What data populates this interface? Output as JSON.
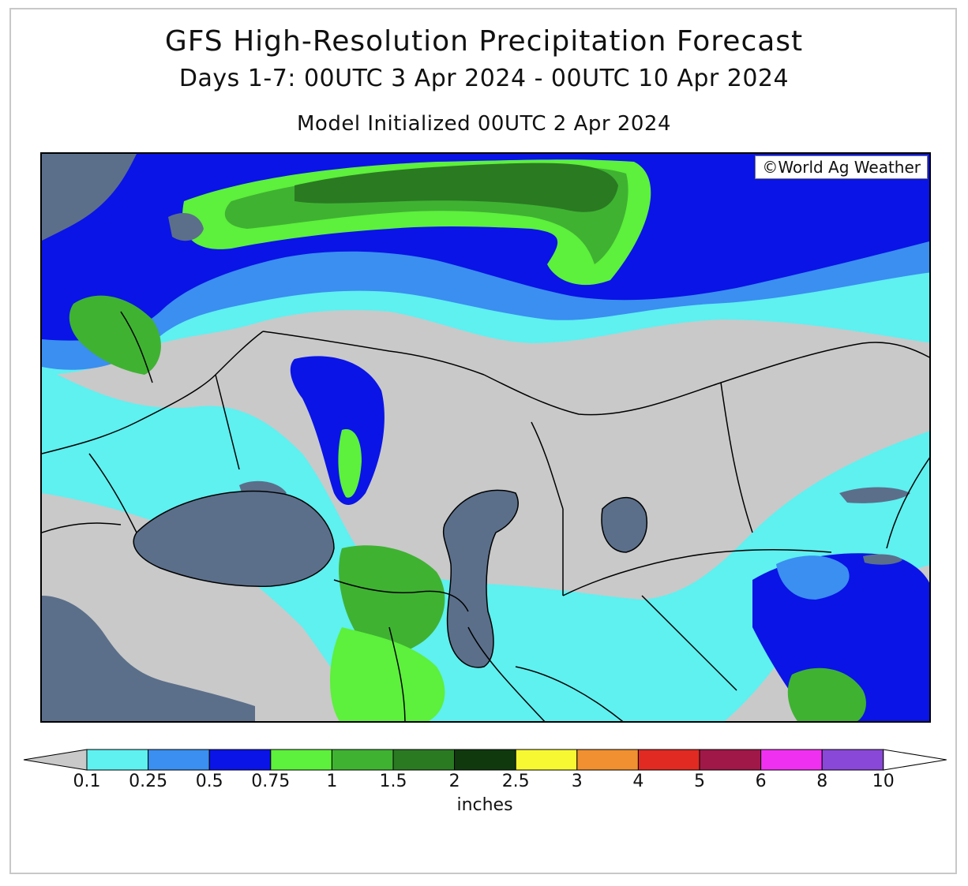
{
  "header": {
    "title": "GFS High-Resolution Precipitation Forecast",
    "period": "Days 1-7: 00UTC 3 Apr 2024 - 00UTC 10 Apr 2024",
    "init": "Model Initialized 00UTC 2 Apr 2024"
  },
  "map": {
    "copyright": "©World Ag Weather",
    "water_color": "#5b6f8a",
    "nodata_color": "#c9c9c9"
  },
  "legend": {
    "units": "inches",
    "labels": [
      "0.1",
      "0.25",
      "0.5",
      "0.75",
      "1",
      "1.5",
      "2",
      "2.5",
      "3",
      "4",
      "5",
      "6",
      "8",
      "10"
    ],
    "colors": [
      "#5ff0f0",
      "#3a8ff0",
      "#0a14e6",
      "#5df03c",
      "#3fb232",
      "#2a7a22",
      "#103a0e",
      "#f8f832",
      "#f09030",
      "#e02a22",
      "#a01848",
      "#f030f0",
      "#8a48d8"
    ],
    "under_color": "#c9c9c9",
    "over_color": "#ffffff"
  }
}
